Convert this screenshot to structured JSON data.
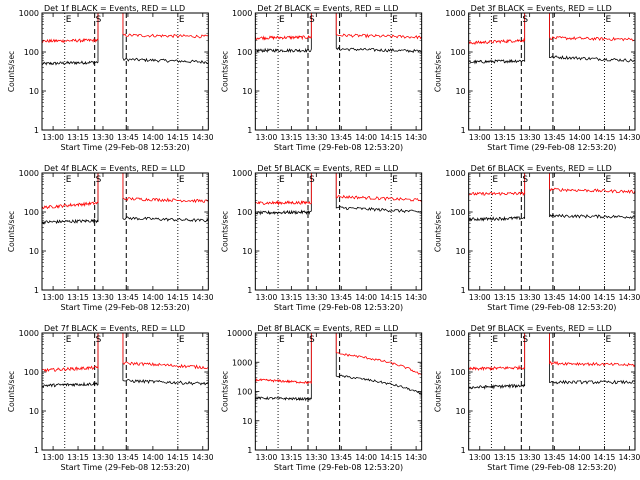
{
  "figure": {
    "xlabel": "Start Time (29-Feb-08 12:53:20)",
    "ylabel": "Counts/sec",
    "marker_labels": [
      "E",
      "S",
      "E"
    ],
    "x_ticks": [
      "13:00",
      "13:15",
      "13:30",
      "13:45",
      "14:00",
      "14:15",
      "14:30"
    ],
    "colors": {
      "events": "#000000",
      "lld": "#ff0000",
      "axes": "#000000",
      "background": "#ffffff"
    }
  },
  "chart_data": [
    {
      "type": "line",
      "title": "Det 1f BLACK = Events, RED = LLD",
      "xlabel": "Start Time (29-Feb-08 12:53:20)",
      "ylabel": "Counts/sec",
      "yscale": "log",
      "ylim": [
        1,
        1000
      ],
      "xlim": [
        "12:53:20",
        "14:33:20"
      ],
      "y_ticks": [
        "1",
        "10",
        "100",
        "1000"
      ],
      "gap": [
        "13:27",
        "13:42"
      ],
      "dotted_lines": [
        "13:07",
        "14:15"
      ],
      "dashed_lines": [
        "13:25",
        "13:44"
      ],
      "series": [
        {
          "color": "#000000",
          "values_pre": [
            50,
            55
          ],
          "values_post": [
            65,
            55
          ]
        },
        {
          "color": "#ff0000",
          "values_pre": [
            190,
            200
          ],
          "values_post": [
            270,
            250
          ]
        }
      ]
    },
    {
      "type": "line",
      "title": "Det 2f BLACK = Events, RED = LLD",
      "xlabel": "Start Time (29-Feb-08 12:53:20)",
      "ylabel": "Counts/sec",
      "yscale": "log",
      "ylim": [
        1,
        1000
      ],
      "xlim": [
        "12:53:20",
        "14:33:20"
      ],
      "y_ticks": [
        "1",
        "10",
        "100",
        "1000"
      ],
      "gap": [
        "13:27",
        "13:42"
      ],
      "dotted_lines": [
        "13:07",
        "14:15"
      ],
      "dashed_lines": [
        "13:25",
        "13:44"
      ],
      "series": [
        {
          "color": "#000000",
          "values_pre": [
            110,
            110
          ],
          "values_post": [
            120,
            105
          ]
        },
        {
          "color": "#ff0000",
          "values_pre": [
            230,
            240
          ],
          "values_post": [
            270,
            240
          ]
        }
      ]
    },
    {
      "type": "line",
      "title": "Det 3f BLACK = Events, RED = LLD",
      "xlabel": "Start Time (29-Feb-08 12:53:20)",
      "ylabel": "Counts/sec",
      "yscale": "log",
      "ylim": [
        1,
        1000
      ],
      "xlim": [
        "12:53:20",
        "14:33:20"
      ],
      "y_ticks": [
        "1",
        "10",
        "100",
        "1000"
      ],
      "gap": [
        "13:27",
        "13:42"
      ],
      "dotted_lines": [
        "13:07",
        "14:15"
      ],
      "dashed_lines": [
        "13:25",
        "13:44"
      ],
      "series": [
        {
          "color": "#000000",
          "values_pre": [
            55,
            60
          ],
          "values_post": [
            75,
            60
          ]
        },
        {
          "color": "#ff0000",
          "values_pre": [
            170,
            200
          ],
          "values_post": [
            230,
            210
          ]
        }
      ]
    },
    {
      "type": "line",
      "title": "Det 4f BLACK = Events, RED = LLD",
      "xlabel": "Start Time (29-Feb-08 12:53:20)",
      "ylabel": "Counts/sec",
      "yscale": "log",
      "ylim": [
        1,
        1000
      ],
      "xlim": [
        "12:53:20",
        "14:33:20"
      ],
      "y_ticks": [
        "1",
        "10",
        "100",
        "1000"
      ],
      "gap": [
        "13:27",
        "13:42"
      ],
      "dotted_lines": [
        "13:07",
        "14:15"
      ],
      "dashed_lines": [
        "13:25",
        "13:44"
      ],
      "series": [
        {
          "color": "#000000",
          "values_pre": [
            55,
            60
          ],
          "values_post": [
            70,
            60
          ]
        },
        {
          "color": "#ff0000",
          "values_pre": [
            130,
            170
          ],
          "values_post": [
            220,
            190
          ]
        }
      ]
    },
    {
      "type": "line",
      "title": "Det 5f BLACK = Events, RED = LLD",
      "xlabel": "Start Time (29-Feb-08 12:53:20)",
      "ylabel": "Counts/sec",
      "yscale": "log",
      "ylim": [
        1,
        1000
      ],
      "xlim": [
        "12:53:20",
        "14:33:20"
      ],
      "y_ticks": [
        "1",
        "10",
        "100",
        "1000"
      ],
      "gap": [
        "13:27",
        "13:42"
      ],
      "dotted_lines": [
        "13:07",
        "14:15"
      ],
      "dashed_lines": [
        "13:25",
        "13:44"
      ],
      "series": [
        {
          "color": "#000000",
          "values_pre": [
            95,
            100
          ],
          "values_post": [
            130,
            100
          ]
        },
        {
          "color": "#ff0000",
          "values_pre": [
            170,
            175
          ],
          "values_post": [
            250,
            200
          ]
        }
      ]
    },
    {
      "type": "line",
      "title": "Det 6f BLACK = Events, RED = LLD",
      "xlabel": "Start Time (29-Feb-08 12:53:20)",
      "ylabel": "Counts/sec",
      "yscale": "log",
      "ylim": [
        1,
        1000
      ],
      "xlim": [
        "12:53:20",
        "14:33:20"
      ],
      "y_ticks": [
        "1",
        "10",
        "100",
        "1000"
      ],
      "gap": [
        "13:27",
        "13:42"
      ],
      "dotted_lines": [
        "13:07",
        "14:15"
      ],
      "dashed_lines": [
        "13:25",
        "13:44"
      ],
      "series": [
        {
          "color": "#000000",
          "values_pre": [
            65,
            70
          ],
          "values_post": [
            80,
            75
          ]
        },
        {
          "color": "#ff0000",
          "values_pre": [
            290,
            300
          ],
          "values_post": [
            380,
            330
          ]
        }
      ]
    },
    {
      "type": "line",
      "title": "Det 7f BLACK = Events, RED = LLD",
      "xlabel": "Start Time (29-Feb-08 12:53:20)",
      "ylabel": "Counts/sec",
      "yscale": "log",
      "ylim": [
        1,
        1000
      ],
      "xlim": [
        "12:53:20",
        "14:33:20"
      ],
      "y_ticks": [
        "1",
        "10",
        "100",
        "1000"
      ],
      "gap": [
        "13:27",
        "13:42"
      ],
      "dotted_lines": [
        "13:07",
        "14:15"
      ],
      "dashed_lines": [
        "13:25",
        "13:44"
      ],
      "series": [
        {
          "color": "#000000",
          "values_pre": [
            45,
            50
          ],
          "values_post": [
            60,
            50
          ]
        },
        {
          "color": "#ff0000",
          "values_pre": [
            110,
            130
          ],
          "values_post": [
            170,
            130
          ]
        }
      ]
    },
    {
      "type": "line",
      "title": "Det 8f BLACK = Events, RED = LLD",
      "xlabel": "Start Time (29-Feb-08 12:53:20)",
      "ylabel": "Counts/sec",
      "yscale": "log",
      "ylim": [
        1,
        10000
      ],
      "xlim": [
        "12:53:20",
        "14:33:20"
      ],
      "y_ticks": [
        "1",
        "10",
        "100",
        "1000",
        "10000"
      ],
      "gap": [
        "13:27",
        "13:42"
      ],
      "dotted_lines": [
        "13:07",
        "14:15"
      ],
      "dashed_lines": [
        "13:25",
        "13:44"
      ],
      "series": [
        {
          "color": "#000000",
          "values_pre": [
            60,
            55
          ],
          "values_post": [
            350,
            80
          ]
        },
        {
          "color": "#ff0000",
          "values_pre": [
            250,
            200
          ],
          "values_post": [
            2000,
            350
          ]
        }
      ]
    },
    {
      "type": "line",
      "title": "Det 9f BLACK = Events, RED = LLD",
      "xlabel": "Start Time (29-Feb-08 12:53:20)",
      "ylabel": "Counts/sec",
      "yscale": "log",
      "ylim": [
        1,
        1000
      ],
      "xlim": [
        "12:53:20",
        "14:33:20"
      ],
      "y_ticks": [
        "1",
        "10",
        "100",
        "1000"
      ],
      "gap": [
        "13:27",
        "13:42"
      ],
      "dotted_lines": [
        "13:07",
        "14:15"
      ],
      "dashed_lines": [
        "13:25",
        "13:44"
      ],
      "series": [
        {
          "color": "#000000",
          "values_pre": [
            40,
            45
          ],
          "values_post": [
            55,
            55
          ]
        },
        {
          "color": "#ff0000",
          "values_pre": [
            120,
            130
          ],
          "values_post": [
            170,
            150
          ]
        }
      ]
    }
  ]
}
